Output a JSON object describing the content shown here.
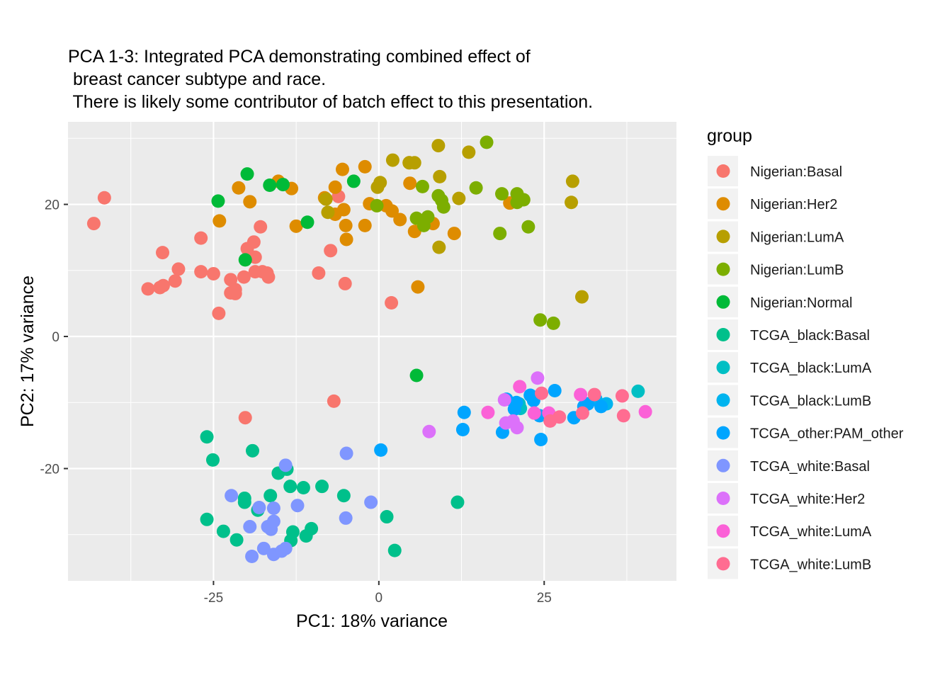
{
  "chart_data": {
    "type": "scatter",
    "title_lines": [
      "PCA 1-3: Integrated PCA demonstrating combined effect of",
      " breast cancer subtype and race.",
      " There is likely some contributor of batch effect to this presentation."
    ],
    "xlabel": "PC1: 18% variance",
    "ylabel": "PC2: 17% variance",
    "xlim": [
      -47,
      45
    ],
    "ylim": [
      -37,
      32.5
    ],
    "x_ticks": [
      -25,
      0,
      25
    ],
    "x_tick_labels": [
      "-25",
      "0",
      "25"
    ],
    "y_ticks": [
      -20,
      0,
      20
    ],
    "y_tick_labels": [
      "-20",
      "0",
      "20"
    ],
    "grid": true,
    "legend": {
      "title": "group",
      "position": "right"
    },
    "series": [
      {
        "name": "Nigerian:Basal",
        "color": "#F8766D",
        "points": [
          [
            -43.1,
            17.1
          ],
          [
            -41.5,
            21.0
          ],
          [
            -32.7,
            12.7
          ],
          [
            -30.3,
            10.2
          ],
          [
            -30.8,
            8.4
          ],
          [
            -32.6,
            7.7
          ],
          [
            -33.1,
            7.4
          ],
          [
            -34.9,
            7.2
          ],
          [
            -26.9,
            14.9
          ],
          [
            -26.9,
            9.8
          ],
          [
            -25.0,
            9.5
          ],
          [
            -24.2,
            3.5
          ],
          [
            -22.4,
            8.6
          ],
          [
            -22.4,
            6.6
          ],
          [
            -21.7,
            6.5
          ],
          [
            -21.7,
            7.1
          ],
          [
            -20.4,
            9.0
          ],
          [
            -19.9,
            13.3
          ],
          [
            -18.9,
            14.3
          ],
          [
            -18.7,
            12.0
          ],
          [
            -18.7,
            9.8
          ],
          [
            -17.9,
            16.6
          ],
          [
            -17.6,
            9.8
          ],
          [
            -16.9,
            9.6
          ],
          [
            -16.7,
            9.0
          ],
          [
            -9.1,
            9.6
          ],
          [
            -7.3,
            13.0
          ],
          [
            -6.1,
            21.2
          ],
          [
            -5.1,
            8.0
          ],
          [
            -6.8,
            -9.8
          ],
          [
            -20.2,
            -12.3
          ],
          [
            1.9,
            5.1
          ]
        ]
      },
      {
        "name": "Nigerian:Her2",
        "color": "#DE8C00",
        "points": [
          [
            -21.2,
            22.5
          ],
          [
            -19.5,
            20.4
          ],
          [
            -24.1,
            17.5
          ],
          [
            -15.2,
            23.5
          ],
          [
            -13.2,
            22.4
          ],
          [
            -12.5,
            16.7
          ],
          [
            -8.2,
            21.0
          ],
          [
            -6.6,
            22.6
          ],
          [
            -6.6,
            18.5
          ],
          [
            -5.5,
            25.3
          ],
          [
            -5.3,
            19.2
          ],
          [
            -5.0,
            16.8
          ],
          [
            -4.9,
            14.7
          ],
          [
            -2.1,
            25.7
          ],
          [
            -2.1,
            16.8
          ],
          [
            -1.4,
            20.1
          ],
          [
            1.1,
            19.8
          ],
          [
            2.0,
            19.0
          ],
          [
            3.2,
            17.7
          ],
          [
            4.6,
            26.3
          ],
          [
            4.7,
            23.2
          ],
          [
            5.4,
            15.9
          ],
          [
            5.9,
            7.5
          ],
          [
            8.2,
            17.1
          ],
          [
            11.4,
            15.6
          ],
          [
            19.8,
            20.2
          ]
        ]
      },
      {
        "name": "Nigerian:LumA",
        "color": "#B79F00",
        "points": [
          [
            -8.0,
            20.8
          ],
          [
            -7.7,
            18.8
          ],
          [
            -0.2,
            22.6
          ],
          [
            0.2,
            23.3
          ],
          [
            2.1,
            26.7
          ],
          [
            4.6,
            26.3
          ],
          [
            5.4,
            26.3
          ],
          [
            9.0,
            28.9
          ],
          [
            9.2,
            24.2
          ],
          [
            9.1,
            13.5
          ],
          [
            12.1,
            20.9
          ],
          [
            13.6,
            27.9
          ],
          [
            29.3,
            23.5
          ],
          [
            29.1,
            20.3
          ],
          [
            30.7,
            6.0
          ]
        ]
      },
      {
        "name": "Nigerian:LumB",
        "color": "#7CAE00",
        "points": [
          [
            -0.3,
            19.8
          ],
          [
            5.7,
            17.9
          ],
          [
            6.6,
            22.7
          ],
          [
            6.8,
            16.8
          ],
          [
            7.4,
            18.1
          ],
          [
            9.0,
            21.3
          ],
          [
            9.5,
            20.6
          ],
          [
            9.8,
            19.6
          ],
          [
            14.7,
            22.5
          ],
          [
            16.3,
            29.4
          ],
          [
            18.3,
            15.6
          ],
          [
            18.6,
            21.6
          ],
          [
            20.9,
            21.6
          ],
          [
            20.9,
            20.3
          ],
          [
            21.9,
            20.7
          ],
          [
            22.6,
            16.6
          ],
          [
            24.4,
            2.5
          ],
          [
            26.4,
            2.0
          ]
        ]
      },
      {
        "name": "Nigerian:Normal",
        "color": "#00BA38",
        "points": [
          [
            -24.3,
            20.5
          ],
          [
            -19.9,
            24.6
          ],
          [
            -16.5,
            22.9
          ],
          [
            -14.5,
            23.0
          ],
          [
            -10.8,
            17.3
          ],
          [
            -3.8,
            23.5
          ],
          [
            -20.2,
            11.6
          ],
          [
            5.7,
            -5.9
          ]
        ]
      },
      {
        "name": "TCGA_black:Basal",
        "color": "#00C08B",
        "points": [
          [
            -26.0,
            -15.2
          ],
          [
            -25.1,
            -18.7
          ],
          [
            -19.1,
            -17.3
          ],
          [
            -26.0,
            -27.7
          ],
          [
            -23.5,
            -29.5
          ],
          [
            -21.5,
            -30.8
          ],
          [
            -20.3,
            -24.5
          ],
          [
            -20.3,
            -25.1
          ],
          [
            -18.3,
            -26.3
          ],
          [
            -16.4,
            -24.1
          ],
          [
            -15.2,
            -20.7
          ],
          [
            -13.9,
            -20.1
          ],
          [
            -13.4,
            -22.7
          ],
          [
            -11.4,
            -22.9
          ],
          [
            -13.0,
            -29.6
          ],
          [
            -13.3,
            -30.9
          ],
          [
            -11.0,
            -30.2
          ],
          [
            -10.2,
            -29.1
          ],
          [
            -8.6,
            -22.7
          ],
          [
            -5.3,
            -24.1
          ],
          [
            1.2,
            -27.3
          ],
          [
            2.4,
            -32.4
          ],
          [
            11.9,
            -25.1
          ]
        ]
      },
      {
        "name": "TCGA_black:LumA",
        "color": "#00BFC4",
        "points": [
          [
            21.2,
            -10.2
          ],
          [
            21.4,
            -10.9
          ],
          [
            39.2,
            -8.3
          ]
        ]
      },
      {
        "name": "TCGA_black:LumB",
        "color": "#00B4EF",
        "points": [
          [
            32.8,
            -9.5
          ],
          [
            34.4,
            -10.2
          ]
        ]
      },
      {
        "name": "TCGA_other:PAM_other",
        "color": "#00A5FF",
        "points": [
          [
            0.3,
            -17.2
          ],
          [
            12.7,
            -14.1
          ],
          [
            12.9,
            -11.5
          ],
          [
            18.7,
            -14.5
          ],
          [
            19.3,
            -9.5
          ],
          [
            20.5,
            -11.0
          ],
          [
            20.8,
            -10.0
          ],
          [
            22.9,
            -8.9
          ],
          [
            23.4,
            -9.7
          ],
          [
            24.3,
            -12.0
          ],
          [
            24.5,
            -15.6
          ],
          [
            26.6,
            -8.2
          ],
          [
            29.5,
            -12.3
          ],
          [
            31.0,
            -10.6
          ],
          [
            31.6,
            -10.2
          ],
          [
            33.6,
            -10.6
          ]
        ]
      },
      {
        "name": "TCGA_white:Basal",
        "color": "#7F96FF",
        "points": [
          [
            -14.1,
            -19.5
          ],
          [
            -4.9,
            -17.7
          ],
          [
            -22.3,
            -24.1
          ],
          [
            -19.5,
            -28.8
          ],
          [
            -19.2,
            -33.3
          ],
          [
            -18.1,
            -25.9
          ],
          [
            -17.4,
            -32.1
          ],
          [
            -16.8,
            -28.8
          ],
          [
            -16.3,
            -29.2
          ],
          [
            -15.9,
            -28.0
          ],
          [
            -15.9,
            -26.0
          ],
          [
            -15.9,
            -33.0
          ],
          [
            -14.7,
            -32.5
          ],
          [
            -14.1,
            -32.1
          ],
          [
            -12.3,
            -25.6
          ],
          [
            -5.0,
            -27.5
          ],
          [
            -1.2,
            -25.1
          ]
        ]
      },
      {
        "name": "TCGA_white:Her2",
        "color": "#DC71FA",
        "points": [
          [
            7.6,
            -14.4
          ],
          [
            19.0,
            -9.6
          ],
          [
            19.2,
            -13.1
          ],
          [
            20.3,
            -12.8
          ],
          [
            20.9,
            -13.8
          ],
          [
            24.0,
            -6.3
          ]
        ]
      },
      {
        "name": "TCGA_white:LumA",
        "color": "#FB61D7",
        "points": [
          [
            16.5,
            -11.5
          ],
          [
            21.3,
            -7.6
          ],
          [
            23.5,
            -11.6
          ],
          [
            25.7,
            -11.6
          ],
          [
            30.5,
            -8.8
          ],
          [
            40.3,
            -11.4
          ]
        ]
      },
      {
        "name": "TCGA_white:LumB",
        "color": "#FF6C91",
        "points": [
          [
            24.6,
            -8.6
          ],
          [
            25.9,
            -12.8
          ],
          [
            27.3,
            -12.2
          ],
          [
            30.8,
            -11.6
          ],
          [
            32.6,
            -8.8
          ],
          [
            36.8,
            -9.0
          ],
          [
            37.0,
            -12.0
          ]
        ]
      }
    ]
  }
}
